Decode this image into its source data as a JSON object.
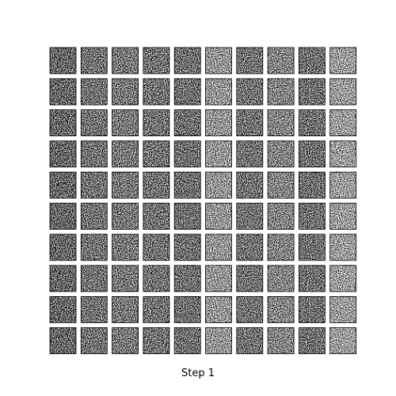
{
  "caption": "Step 1"
}
